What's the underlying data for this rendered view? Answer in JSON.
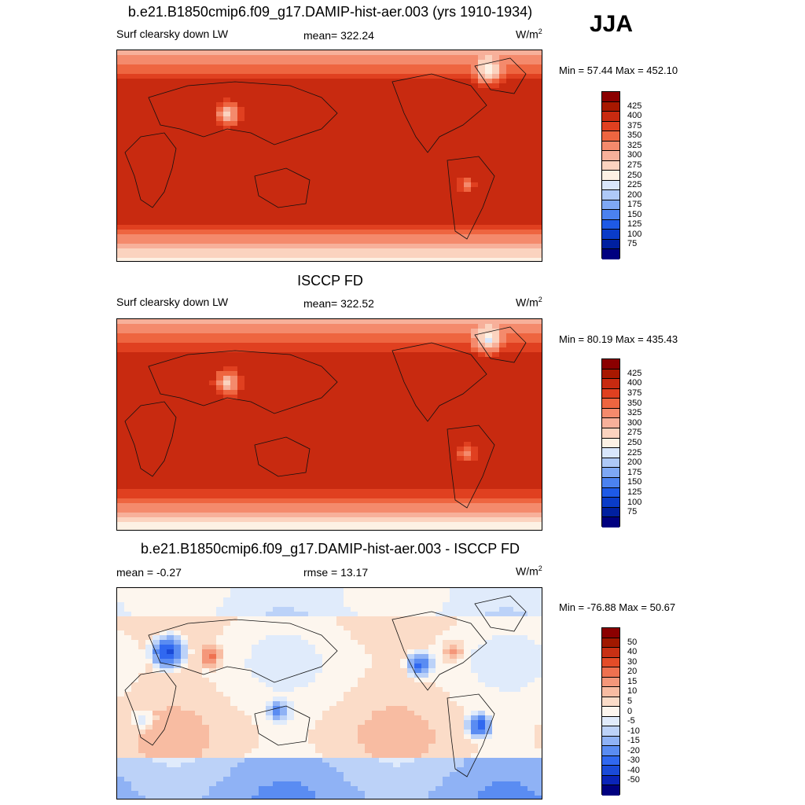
{
  "season": "JJA",
  "colors": {
    "abs_levels": [
      "#000080",
      "#0020a0",
      "#0a3cc8",
      "#1e5ae6",
      "#4b82f0",
      "#7ea8f5",
      "#aec9f7",
      "#d8e6fb",
      "#fdf1e4",
      "#fbd3bf",
      "#f7b09a",
      "#f48a6c",
      "#ee6540",
      "#e04020",
      "#c82a10",
      "#a81800",
      "#8b0000"
    ],
    "diff_levels": [
      "#000080",
      "#0a24b8",
      "#1a4ad8",
      "#3068f0",
      "#5a8cf2",
      "#8fb2f5",
      "#bcd2f8",
      "#e0ebfb",
      "#fdf6ee",
      "#fbdcc8",
      "#f8bca2",
      "#f4977a",
      "#ef7150",
      "#e44c28",
      "#c83014",
      "#a01800",
      "#8b0000"
    ]
  },
  "panels": [
    {
      "title": "b.e21.B1850cmip6.f09_g17.DAMIP-hist-aer.003 (yrs 1910-1934)",
      "left_label": "Surf clearsky down LW",
      "center_label": "mean= 322.24",
      "units": "W/m",
      "units_sup": "2",
      "minmax": "Min =  57.44 Max = 452.10",
      "ticks": [
        "75",
        "100",
        "125",
        "150",
        "175",
        "200",
        "225",
        "250",
        "275",
        "300",
        "325",
        "350",
        "375",
        "400",
        "425"
      ]
    },
    {
      "title": "ISCCP FD",
      "left_label": "Surf clearsky down LW",
      "center_label": "mean= 322.52",
      "units": "W/m",
      "units_sup": "2",
      "minmax": "Min =  80.19 Max = 435.43",
      "ticks": [
        "75",
        "100",
        "125",
        "150",
        "175",
        "200",
        "225",
        "250",
        "275",
        "300",
        "325",
        "350",
        "375",
        "400",
        "425"
      ]
    },
    {
      "title": "b.e21.B1850cmip6.f09_g17.DAMIP-hist-aer.003 - ISCCP FD",
      "left_label": "mean =  -0.27",
      "center_label": "rmse =  13.17",
      "units": "W/m",
      "units_sup": "2",
      "minmax": "Min = -76.88 Max =  50.67",
      "ticks": [
        "-50",
        "-40",
        "-30",
        "-20",
        "-15",
        "-10",
        "-5",
        "0",
        "5",
        "10",
        "15",
        "20",
        "30",
        "40",
        "50"
      ]
    }
  ]
}
